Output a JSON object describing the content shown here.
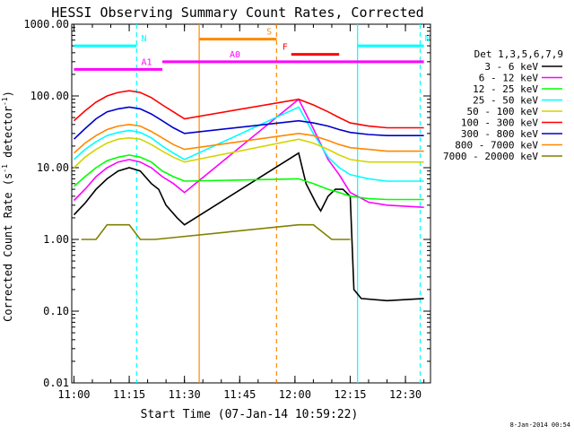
{
  "chart_data": {
    "type": "line",
    "title": "HESSI Observing Summary Count Rates, Corrected",
    "xlabel": "Start Time (07-Jan-14 10:59:22)",
    "ylabel_main": "Corrected Count Rate (s",
    "ylabel_sup": "-1",
    "ylabel_end": " detector",
    "ylabel_close": ")",
    "footer_date": "8-Jan-2014 00:54",
    "yscale": "log",
    "ylim": [
      0.01,
      1000
    ],
    "xlim": [
      "11:00",
      "12:35"
    ],
    "grid": false,
    "legend_placement": "right",
    "legend_title": "Det 1,3,5,6,7,9",
    "x_ticks": [
      "11:00",
      "11:15",
      "11:30",
      "11:45",
      "12:00",
      "12:15",
      "12:30"
    ],
    "y_ticks": [
      "1000.00",
      "100.00",
      "10.00",
      "1.00",
      "0.10",
      "0.01"
    ],
    "colors": {
      "black": "#000000",
      "magenta": "#ff00ff",
      "green": "#00ff00",
      "cyan": "#00ffff",
      "yellow": "#d4d400",
      "red": "#ff0000",
      "blue": "#0000cc",
      "orange": "#ff8800",
      "olive": "#808000"
    },
    "series": [
      {
        "name": "3 - 6 keV",
        "color": "#000000",
        "x": [
          "11:00",
          "11:03",
          "11:06",
          "11:09",
          "11:12",
          "11:15",
          "11:18",
          "11:21",
          "11:23",
          "11:25",
          "11:28",
          "11:30",
          "12:01",
          "12:03",
          "12:06",
          "12:07",
          "12:09",
          "12:11",
          "12:13",
          "12:15",
          "12:16",
          "12:18",
          "12:25",
          "12:35"
        ],
        "values": [
          2.2,
          3.2,
          5,
          7,
          9,
          10,
          9,
          6,
          5,
          3,
          2,
          1.6,
          16,
          6,
          3,
          2.5,
          4,
          5,
          5,
          4,
          0.2,
          0.15,
          0.14,
          0.15
        ]
      },
      {
        "name": "6 - 12 keV",
        "color": "#ff00ff",
        "x": [
          "11:00",
          "11:03",
          "11:06",
          "11:09",
          "11:12",
          "11:15",
          "11:18",
          "11:21",
          "11:24",
          "11:27",
          "11:30",
          "12:01",
          "12:05",
          "12:09",
          "12:12",
          "12:15",
          "12:20",
          "12:25",
          "12:35"
        ],
        "values": [
          3.5,
          5,
          7.5,
          10,
          12,
          13,
          12,
          10,
          7.5,
          6,
          4.5,
          90,
          35,
          13,
          8,
          4.5,
          3.3,
          3,
          2.8
        ]
      },
      {
        "name": "12 - 25 keV",
        "color": "#00ff00",
        "x": [
          "11:00",
          "11:03",
          "11:06",
          "11:09",
          "11:12",
          "11:15",
          "11:18",
          "11:21",
          "11:24",
          "11:27",
          "11:30",
          "12:01",
          "12:05",
          "12:09",
          "12:12",
          "12:15",
          "12:20",
          "12:25",
          "12:35"
        ],
        "values": [
          5.5,
          7.5,
          10,
          12.5,
          14,
          15,
          14,
          12,
          9,
          7.5,
          6.5,
          7,
          6,
          5,
          4.5,
          4,
          3.7,
          3.6,
          3.6
        ]
      },
      {
        "name": "25 - 50 keV",
        "color": "#00ffff",
        "x": [
          "11:00",
          "11:03",
          "11:06",
          "11:09",
          "11:12",
          "11:15",
          "11:18",
          "11:21",
          "11:24",
          "11:27",
          "11:30",
          "12:01",
          "12:05",
          "12:09",
          "12:12",
          "12:15",
          "12:20",
          "12:25",
          "12:35"
        ],
        "values": [
          13,
          18,
          23,
          28,
          31,
          33,
          31,
          26,
          20,
          16,
          13,
          70,
          30,
          14,
          10,
          8,
          7,
          6.5,
          6.5
        ]
      },
      {
        "name": "50 - 100 keV",
        "color": "#d4d400",
        "x": [
          "11:00",
          "11:03",
          "11:06",
          "11:09",
          "11:12",
          "11:15",
          "11:18",
          "11:21",
          "11:24",
          "11:27",
          "11:30",
          "12:01",
          "12:05",
          "12:09",
          "12:12",
          "12:15",
          "12:20",
          "12:25",
          "12:35"
        ],
        "values": [
          10,
          14,
          18,
          22,
          25,
          26,
          25,
          21,
          17,
          14,
          12,
          25,
          22,
          18,
          15,
          13,
          12,
          12,
          12
        ]
      },
      {
        "name": "100 - 300 keV",
        "color": "#ff0000",
        "x": [
          "11:00",
          "11:03",
          "11:06",
          "11:09",
          "11:12",
          "11:15",
          "11:18",
          "11:21",
          "11:24",
          "11:27",
          "11:30",
          "12:01",
          "12:05",
          "12:09",
          "12:12",
          "12:15",
          "12:20",
          "12:25",
          "12:35"
        ],
        "values": [
          45,
          62,
          82,
          100,
          112,
          118,
          112,
          95,
          75,
          60,
          48,
          90,
          75,
          60,
          50,
          42,
          38,
          36,
          36
        ]
      },
      {
        "name": "300 - 800 keV",
        "color": "#0000cc",
        "x": [
          "11:00",
          "11:03",
          "11:06",
          "11:09",
          "11:12",
          "11:15",
          "11:18",
          "11:21",
          "11:24",
          "11:27",
          "11:30",
          "12:01",
          "12:05",
          "12:09",
          "12:12",
          "12:15",
          "12:20",
          "12:25",
          "12:35"
        ],
        "values": [
          25,
          35,
          48,
          60,
          66,
          70,
          66,
          56,
          45,
          36,
          30,
          45,
          42,
          38,
          34,
          31,
          29,
          28,
          28
        ]
      },
      {
        "name": "800 - 7000 keV",
        "color": "#ff8800",
        "x": [
          "11:00",
          "11:03",
          "11:06",
          "11:09",
          "11:12",
          "11:15",
          "11:18",
          "11:21",
          "11:24",
          "11:27",
          "11:30",
          "12:01",
          "12:05",
          "12:09",
          "12:12",
          "12:15",
          "12:20",
          "12:25",
          "12:35"
        ],
        "values": [
          16,
          22,
          28,
          34,
          38,
          40,
          38,
          32,
          26,
          21,
          18,
          30,
          28,
          24,
          21,
          19,
          18,
          17,
          17
        ]
      },
      {
        "name": "7000 - 20000 keV",
        "color": "#808000",
        "x": [
          "11:02",
          "11:04",
          "11:06",
          "11:09",
          "11:12",
          "11:15",
          "11:18",
          "11:22",
          "12:01",
          "12:05",
          "12:10",
          "12:15"
        ],
        "values": [
          1.0,
          1.0,
          1.0,
          1.6,
          1.6,
          1.6,
          1.0,
          1.0,
          1.6,
          1.6,
          1.0,
          1.0
        ]
      }
    ],
    "annotations": {
      "flags": [
        {
          "label": "N",
          "color": "#00ffff",
          "x_start": "11:00",
          "x_end": "11:17",
          "level": 500
        },
        {
          "label": "N",
          "color": "#00ffff",
          "x_start": "12:17",
          "x_end": "12:35",
          "level": 500
        },
        {
          "label": "S",
          "color": "#ff8800",
          "x_start": "11:34",
          "x_end": "11:55",
          "level": 620
        },
        {
          "label": "F",
          "color": "#ff0000",
          "x_start": "11:59",
          "x_end": "12:12",
          "level": 380
        },
        {
          "label": "A0",
          "color": "#ff00ff",
          "x_start": "11:24",
          "x_end": "12:35",
          "level": 300
        },
        {
          "label": "A1",
          "color": "#ff00ff",
          "x_start": "11:00",
          "x_end": "11:24",
          "level": 235
        }
      ],
      "vlines": [
        {
          "x": "11:17",
          "color": "#00ffff",
          "style": "dashed"
        },
        {
          "x": "11:34",
          "color": "#ff8800",
          "style": "solid"
        },
        {
          "x": "11:55",
          "color": "#ff8800",
          "style": "dashed"
        },
        {
          "x": "12:17",
          "color": "#00ffff",
          "style": "solid"
        },
        {
          "x": "12:34",
          "color": "#00ffff",
          "style": "dashed"
        }
      ]
    }
  }
}
